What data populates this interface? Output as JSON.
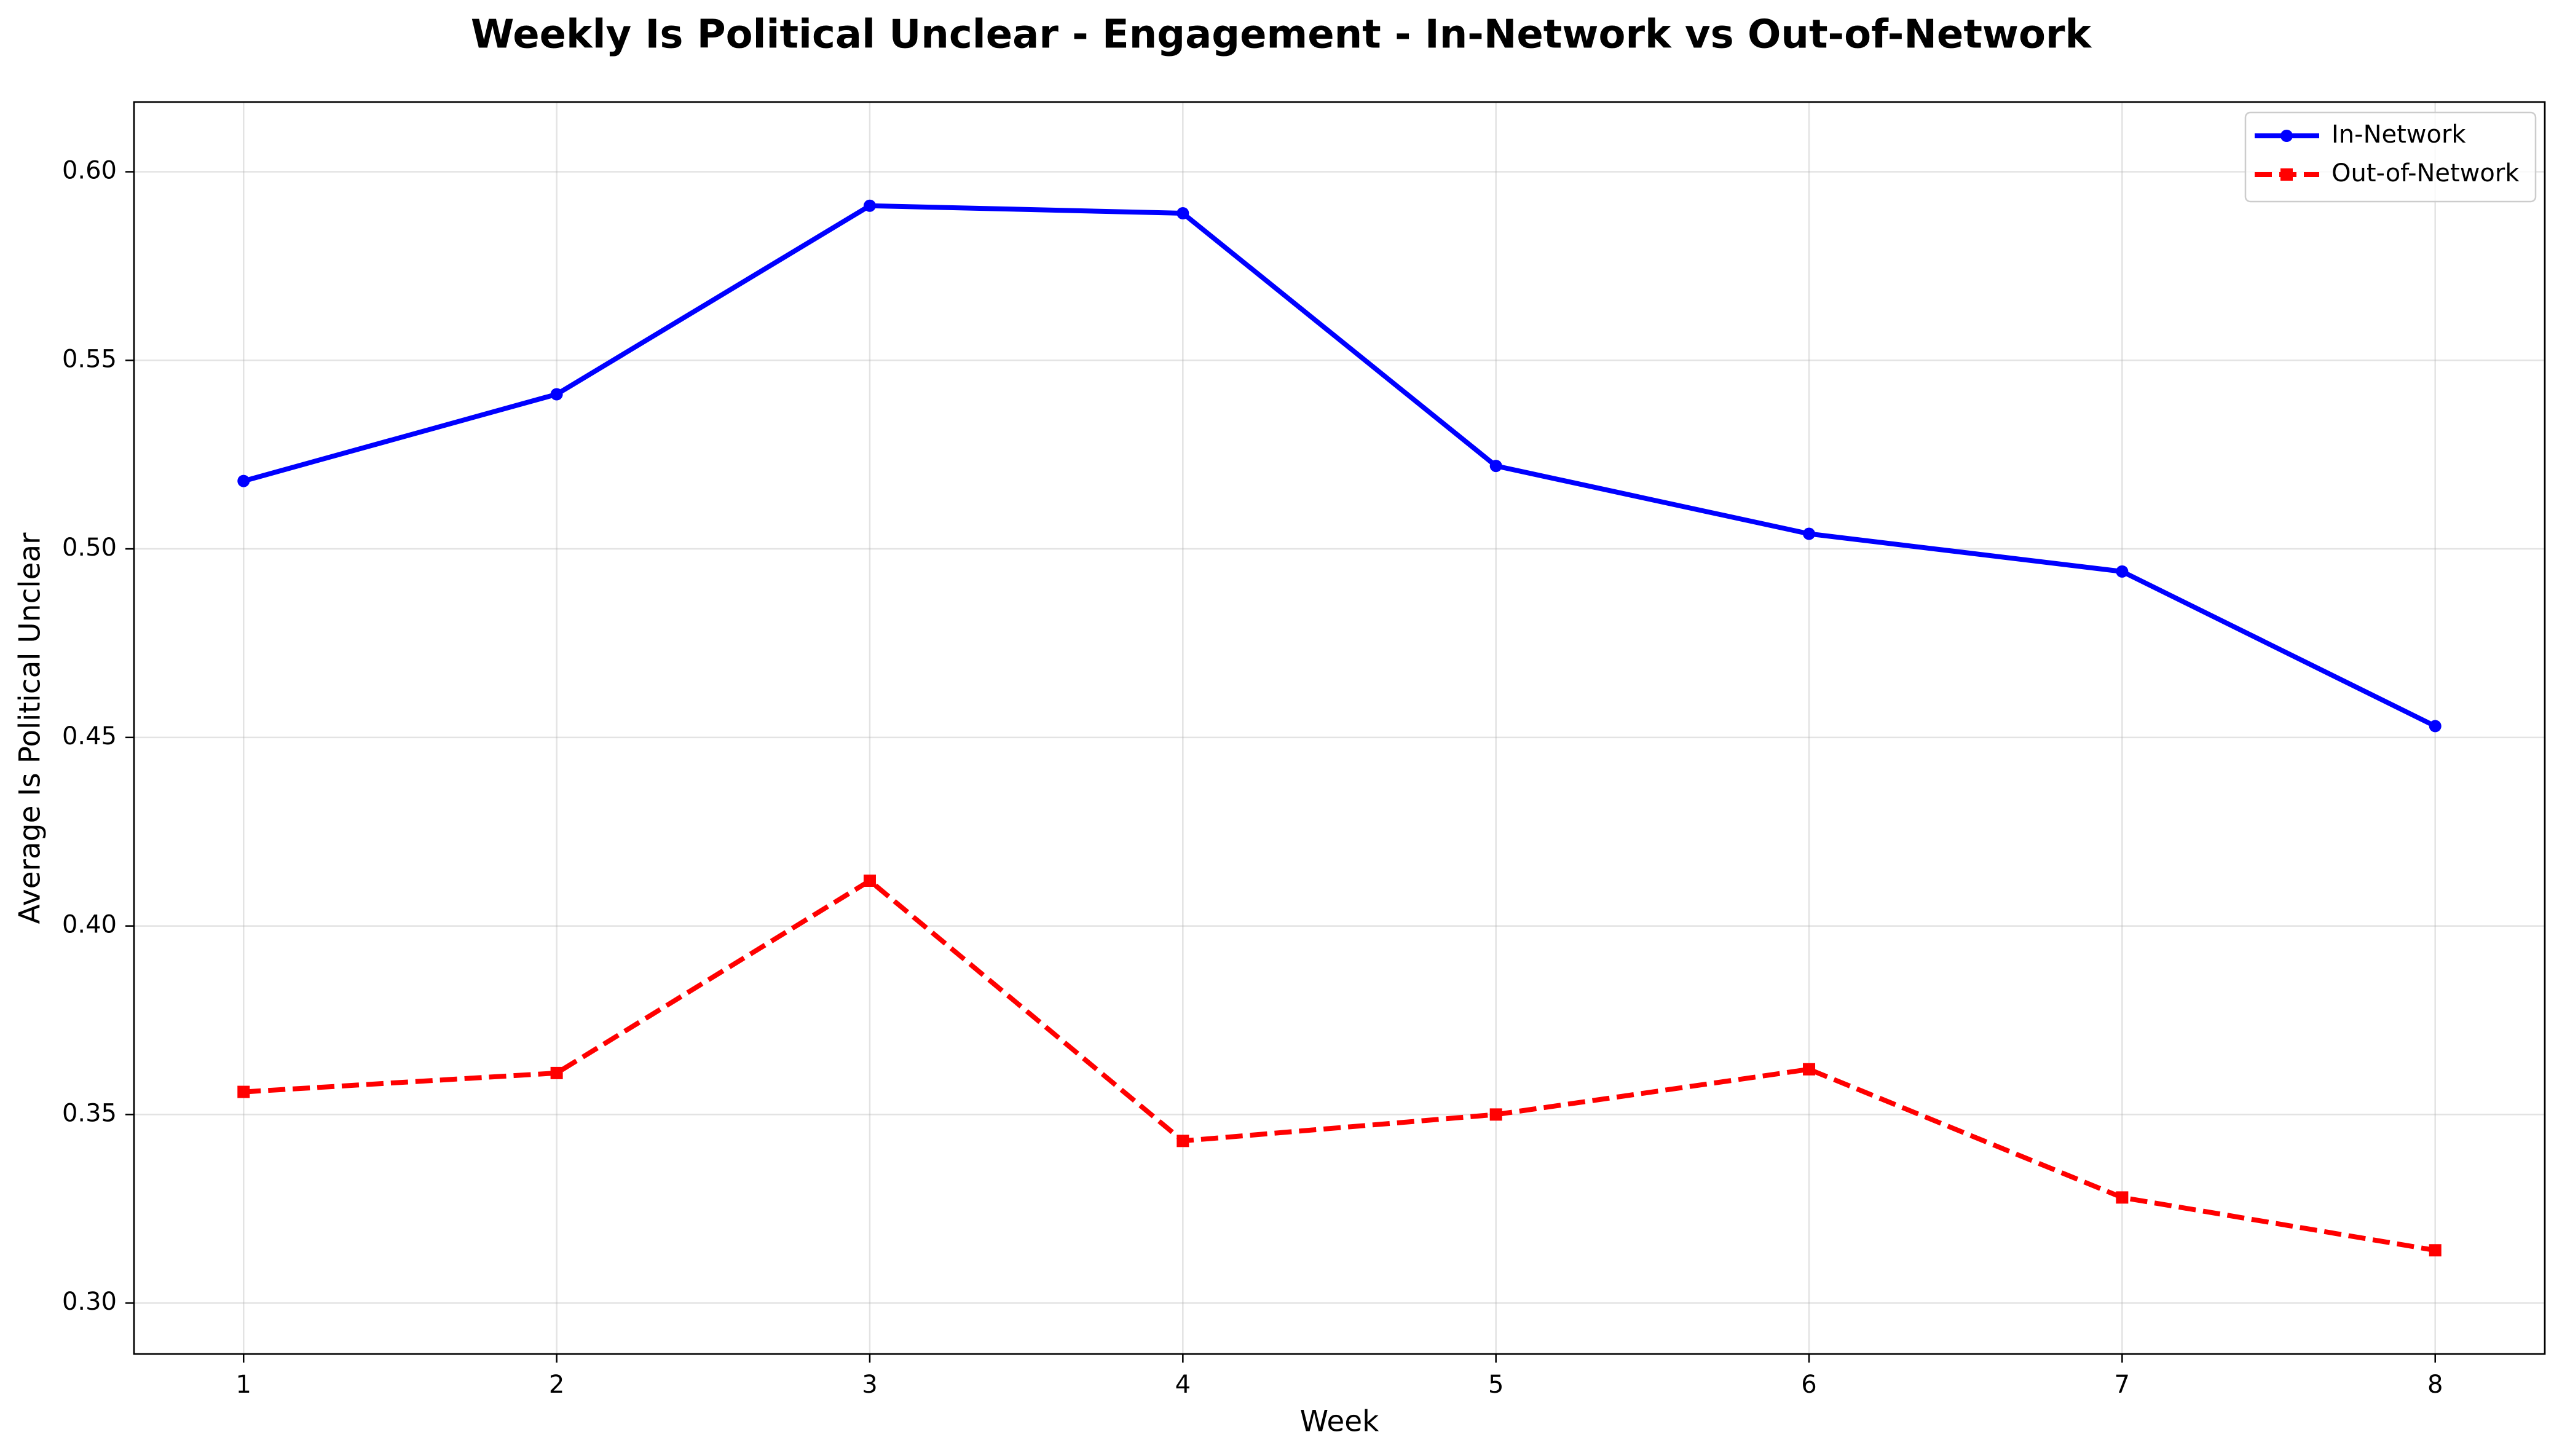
{
  "chart_data": {
    "type": "line",
    "title": "Weekly Is Political Unclear - Engagement - In-Network vs Out-of-Network",
    "xlabel": "Week",
    "ylabel": "Average Is Political Unclear",
    "x": [
      1,
      2,
      3,
      4,
      5,
      6,
      7,
      8
    ],
    "x_ticks": [
      "1",
      "2",
      "3",
      "4",
      "5",
      "6",
      "7",
      "8"
    ],
    "xlim": [
      0.65,
      8.35
    ],
    "ylim": [
      0.2865,
      0.6185
    ],
    "y_ticks": [
      "0.30",
      "0.35",
      "0.40",
      "0.45",
      "0.50",
      "0.55",
      "0.60"
    ],
    "grid": true,
    "legend_position": "top-right",
    "series": [
      {
        "name": "In-Network",
        "color": "#0000ff",
        "line_style": "solid",
        "marker": "circle",
        "values": [
          0.518,
          0.541,
          0.591,
          0.589,
          0.522,
          0.504,
          0.494,
          0.453
        ]
      },
      {
        "name": "Out-of-Network",
        "color": "#ff0000",
        "line_style": "dashed",
        "marker": "square",
        "values": [
          0.356,
          0.361,
          0.412,
          0.343,
          0.35,
          0.362,
          0.328,
          0.314
        ]
      }
    ]
  }
}
